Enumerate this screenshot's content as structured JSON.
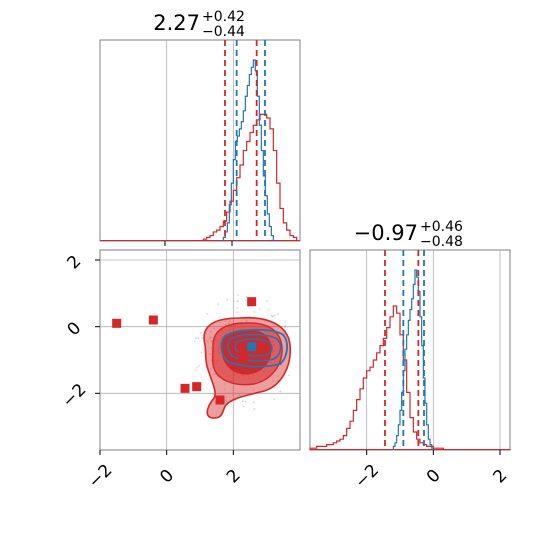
{
  "chart_data": [
    {
      "type": "histogram",
      "panel": "top-left",
      "title": {
        "main": "2.27",
        "plus": "+0.42",
        "minus": "−0.44"
      },
      "xlim": [
        -2.0,
        4.0
      ],
      "colors": {
        "red": "#d62728",
        "blue": "#1f77b4"
      },
      "bins_start": 0.0,
      "bin_width": 0.1,
      "series": [
        {
          "color": "red",
          "counts": [
            0,
            0,
            0,
            0,
            0,
            0,
            0,
            0,
            0,
            0,
            0,
            0,
            0,
            0,
            0,
            0,
            0,
            0,
            0,
            0,
            0,
            0,
            0,
            0,
            0,
            0,
            0,
            0,
            0,
            0,
            0,
            0,
            0,
            0,
            0,
            0,
            0,
            0,
            0,
            0,
            0,
            0,
            0,
            0,
            0,
            0,
            0,
            0,
            0,
            0,
            0,
            0,
            0,
            0,
            0,
            0,
            0,
            0,
            0,
            0,
            0,
            0,
            0,
            0,
            0,
            0,
            0,
            0,
            0,
            0,
            0,
            0,
            0,
            0,
            0,
            0,
            0,
            0,
            0,
            0,
            0,
            0,
            0,
            0,
            0,
            0,
            0,
            0,
            0,
            0,
            0,
            0,
            0,
            0,
            0,
            0,
            0,
            0,
            0,
            0
          ]
        },
        {
          "color": "blue",
          "counts": [
            0,
            0,
            0,
            0,
            0,
            0,
            0,
            0,
            0,
            0,
            0,
            0,
            0,
            0,
            0,
            0,
            0,
            0,
            0,
            0,
            0,
            0,
            0,
            0,
            0,
            0,
            0,
            0,
            0,
            0,
            0,
            0,
            0,
            0,
            0,
            0,
            0,
            0,
            0,
            0,
            0,
            0,
            0,
            0,
            0,
            0,
            0,
            0,
            0,
            0,
            0,
            0,
            0,
            0,
            0,
            0,
            0,
            0,
            0,
            0,
            0,
            0,
            0,
            0,
            0,
            0,
            0,
            0,
            0,
            0,
            0,
            0,
            0,
            0,
            0,
            0,
            0,
            0,
            0,
            0,
            0,
            0,
            0,
            0,
            0,
            0,
            0,
            0,
            0,
            0,
            0,
            0,
            0,
            0,
            0,
            0,
            0,
            0,
            0,
            0
          ]
        }
      ],
      "hist_red": {
        "x0": 1.1,
        "w": 0.1,
        "h": [
          0.01,
          0.02,
          0.03,
          0.05,
          0.06,
          0.08,
          0.11,
          0.16,
          0.22,
          0.28,
          0.35,
          0.42,
          0.5,
          0.55,
          0.6,
          0.64,
          0.67,
          0.7,
          0.7,
          0.68,
          0.62,
          0.5,
          0.32,
          0.18,
          0.1,
          0.06,
          0.03,
          0.02
        ]
      },
      "hist_blue": {
        "x0": 1.7,
        "w": 0.06,
        "h": [
          0.02,
          0.05,
          0.1,
          0.2,
          0.32,
          0.45,
          0.55,
          0.58,
          0.62,
          0.66,
          0.72,
          0.8,
          0.86,
          0.92,
          0.96,
          1.0,
          0.94,
          0.8,
          0.64,
          0.5,
          0.36,
          0.25,
          0.15,
          0.08,
          0.03
        ]
      },
      "quantile_lines": [
        {
          "color": "red",
          "x": [
            1.75,
            2.7
          ]
        },
        {
          "color": "blue",
          "x": [
            2.1,
            2.95
          ]
        }
      ],
      "grid": true
    },
    {
      "type": "scatter",
      "panel": "bottom-left",
      "xlim": [
        -2.0,
        4.0
      ],
      "ylim": [
        -3.7,
        2.3
      ],
      "x_ticks": [
        "−2",
        "0",
        "2"
      ],
      "y_ticks": [
        "2",
        "0",
        "−2"
      ],
      "x_tick_values": [
        -2,
        0,
        2
      ],
      "y_tick_values": [
        2,
        0,
        -2
      ],
      "markers": [
        {
          "x": -1.5,
          "y": 0.1,
          "color": "red"
        },
        {
          "x": -0.4,
          "y": 0.2,
          "color": "red"
        },
        {
          "x": 0.55,
          "y": -1.85,
          "color": "red"
        },
        {
          "x": 0.9,
          "y": -1.8,
          "color": "red"
        },
        {
          "x": 1.6,
          "y": -2.2,
          "color": "red"
        },
        {
          "x": 2.3,
          "y": -0.9,
          "color": "red"
        },
        {
          "x": 2.55,
          "y": 0.75,
          "color": "red"
        },
        {
          "x": 2.55,
          "y": -0.6,
          "color": "blue"
        }
      ],
      "contours": [
        "red",
        "blue"
      ],
      "grid": true
    },
    {
      "type": "histogram",
      "panel": "bottom-right",
      "title": {
        "main": "−0.97",
        "plus": "+0.46",
        "minus": "−0.48"
      },
      "xlim": [
        -3.7,
        2.3
      ],
      "x_ticks": [
        "−2",
        "0",
        "2"
      ],
      "x_tick_values": [
        -2,
        0,
        2
      ],
      "hist_red": {
        "x0": -3.7,
        "w": 0.1,
        "h": [
          0.01,
          0.01,
          0.02,
          0.02,
          0.02,
          0.03,
          0.03,
          0.04,
          0.05,
          0.06,
          0.08,
          0.12,
          0.16,
          0.22,
          0.28,
          0.34,
          0.4,
          0.44,
          0.46,
          0.5,
          0.54,
          0.58,
          0.62,
          0.68,
          0.74,
          0.8,
          0.76,
          0.64,
          0.5,
          0.32,
          0.18,
          0.1,
          0.06,
          0.04,
          0.03,
          0.02,
          0.02,
          0.01,
          0.01,
          0.01
        ]
      },
      "hist_blue": {
        "x0": -1.2,
        "w": 0.05,
        "h": [
          0.02,
          0.04,
          0.08,
          0.14,
          0.22,
          0.32,
          0.44,
          0.56,
          0.64,
          0.72,
          0.78,
          0.84,
          0.92,
          1.0,
          0.96,
          0.88,
          0.74,
          0.58,
          0.4,
          0.26,
          0.14,
          0.06,
          0.03,
          0.01
        ]
      },
      "quantile_lines": [
        {
          "color": "red",
          "x": [
            -1.45,
            -0.45
          ]
        },
        {
          "color": "blue",
          "x": [
            -0.9,
            -0.28
          ]
        }
      ],
      "grid": true
    }
  ]
}
